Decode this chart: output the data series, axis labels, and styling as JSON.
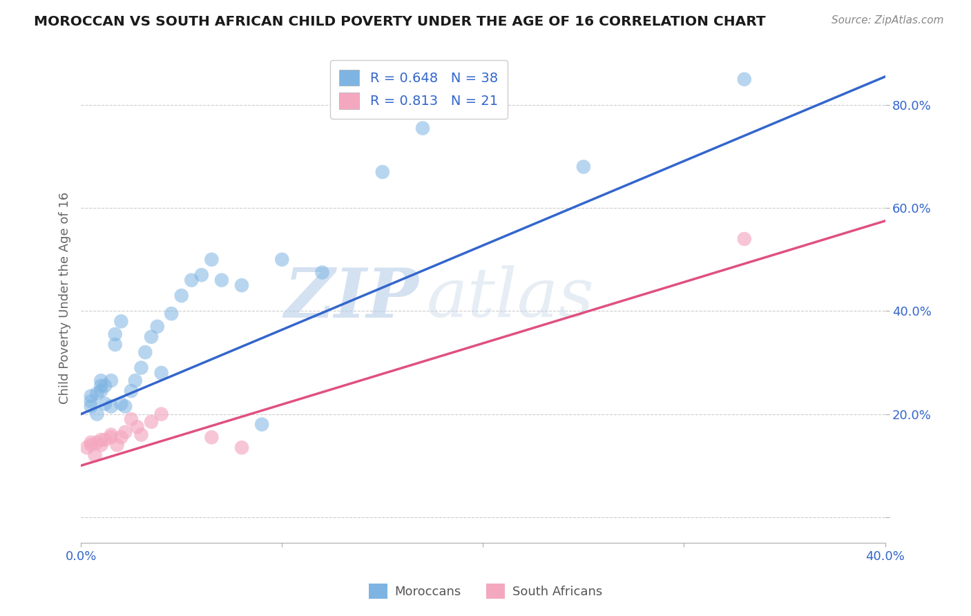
{
  "title": "MOROCCAN VS SOUTH AFRICAN CHILD POVERTY UNDER THE AGE OF 16 CORRELATION CHART",
  "source": "Source: ZipAtlas.com",
  "ylabel": "Child Poverty Under the Age of 16",
  "xlim": [
    0.0,
    0.4
  ],
  "ylim": [
    -0.05,
    0.9
  ],
  "moroccan_color": "#7EB4E2",
  "south_african_color": "#F4A8C0",
  "moroccan_line_color": "#3366CC",
  "south_african_line_color": "#E05080",
  "moroccan_R": 0.648,
  "moroccan_N": 38,
  "south_african_R": 0.813,
  "south_african_N": 21,
  "watermark_zip": "ZIP",
  "watermark_atlas": "atlas",
  "background_color": "#FFFFFF",
  "grid_color": "#CCCCCC",
  "moroccan_x": [
    0.005,
    0.005,
    0.005,
    0.008,
    0.008,
    0.01,
    0.01,
    0.01,
    0.012,
    0.012,
    0.015,
    0.015,
    0.017,
    0.017,
    0.02,
    0.02,
    0.022,
    0.025,
    0.027,
    0.03,
    0.032,
    0.035,
    0.038,
    0.04,
    0.045,
    0.05,
    0.055,
    0.06,
    0.065,
    0.07,
    0.08,
    0.09,
    0.1,
    0.12,
    0.15,
    0.17,
    0.25,
    0.33
  ],
  "moroccan_y": [
    0.215,
    0.225,
    0.235,
    0.2,
    0.24,
    0.245,
    0.255,
    0.265,
    0.22,
    0.255,
    0.215,
    0.265,
    0.335,
    0.355,
    0.22,
    0.38,
    0.215,
    0.245,
    0.265,
    0.29,
    0.32,
    0.35,
    0.37,
    0.28,
    0.395,
    0.43,
    0.46,
    0.47,
    0.5,
    0.46,
    0.45,
    0.18,
    0.5,
    0.475,
    0.67,
    0.755,
    0.68,
    0.85
  ],
  "south_african_x": [
    0.003,
    0.005,
    0.005,
    0.007,
    0.008,
    0.01,
    0.01,
    0.012,
    0.015,
    0.015,
    0.018,
    0.02,
    0.022,
    0.025,
    0.028,
    0.03,
    0.035,
    0.04,
    0.065,
    0.08,
    0.33
  ],
  "south_african_y": [
    0.135,
    0.14,
    0.145,
    0.12,
    0.145,
    0.14,
    0.15,
    0.15,
    0.155,
    0.16,
    0.14,
    0.155,
    0.165,
    0.19,
    0.175,
    0.16,
    0.185,
    0.2,
    0.155,
    0.135,
    0.54
  ],
  "blue_line_x0": 0.0,
  "blue_line_y0": 0.2,
  "blue_line_x1": 0.4,
  "blue_line_y1": 0.855,
  "pink_line_x0": 0.0,
  "pink_line_y0": 0.1,
  "pink_line_x1": 0.4,
  "pink_line_y1": 0.575
}
